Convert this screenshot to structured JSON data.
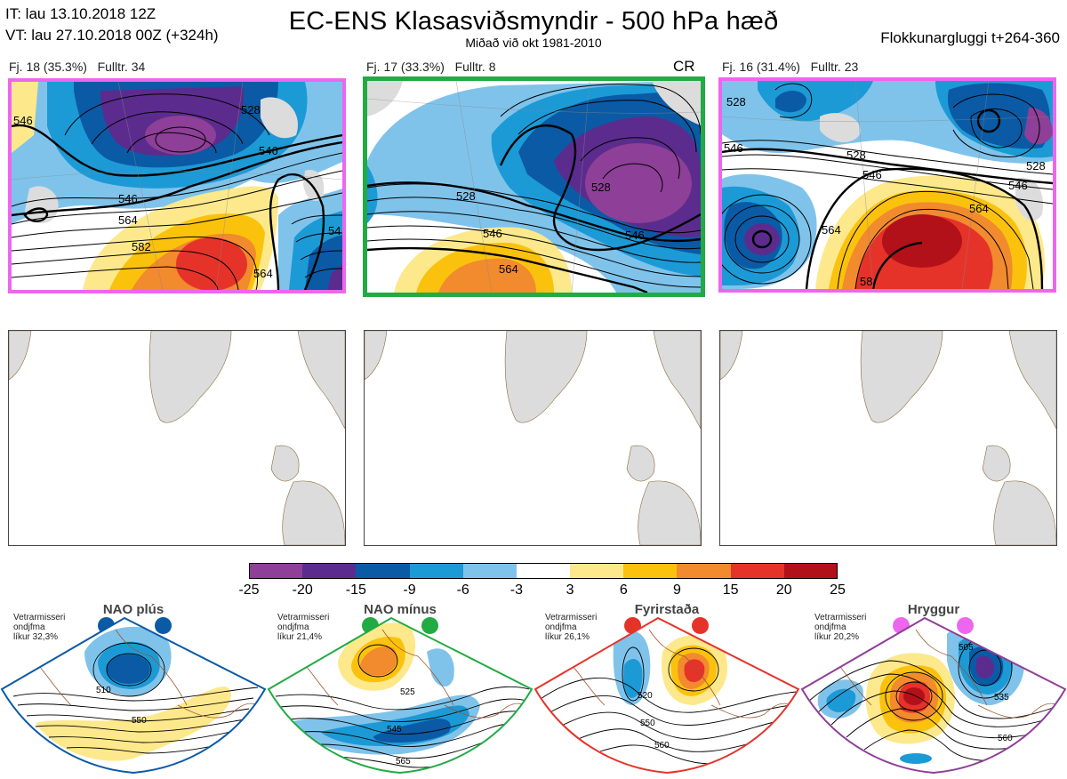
{
  "header": {
    "it_line": "IT: lau 13.10.2018 12Z",
    "vt_line": "VT: lau 27.10.2018 00Z  (+324h)",
    "title": "EC-ENS Klasasviðsmyndir - 500 hPa hæð",
    "subtitle": "Miðað við okt 1981-2010",
    "window": "Flokkunargluggi t+264-360"
  },
  "clusters": [
    {
      "label": "Fj. 18 (35.3%)   Fulltr. 34",
      "border_color": "#ee66ee",
      "badge": "",
      "contour_labels": [
        "546",
        "528",
        "546",
        "546",
        "564",
        "582",
        "564",
        "54"
      ]
    },
    {
      "label": "Fj. 17 (33.3%)   Fulltr. 8",
      "border_color": "#22aa44",
      "badge": "CR",
      "contour_labels": [
        "528",
        "546",
        "564",
        "528",
        "546"
      ]
    },
    {
      "label": "Fj. 16 (31.4%)   Fulltr. 23",
      "border_color": "#ee66ee",
      "badge": "",
      "contour_labels": [
        "528",
        "546",
        "528",
        "546",
        "564",
        "564",
        "546",
        "528",
        "58"
      ]
    }
  ],
  "colorbar": {
    "colors": [
      "#8e3f97",
      "#5b2c8e",
      "#0b5aa5",
      "#1c9ad6",
      "#7fc3eb",
      "#ffffff",
      "#fde98b",
      "#fbc20d",
      "#f28a2e",
      "#e5332a",
      "#b3111a"
    ],
    "ticks": [
      "-25",
      "-20",
      "-15",
      "-9",
      "-6",
      "-3",
      "3",
      "6",
      "9",
      "15",
      "20",
      "25"
    ]
  },
  "regimes": [
    {
      "title": "NAO plús",
      "note": [
        "Vetrarmisseri",
        "ondjfma",
        "líkur 32,3%"
      ],
      "color": "#0b5aa5",
      "contour_labels": [
        "510",
        "550"
      ]
    },
    {
      "title": "NAO mínus",
      "note": [
        "Vetrarmisseri",
        "ondjfma",
        "líkur 21,4%"
      ],
      "color": "#22aa44",
      "contour_labels": [
        "525",
        "545",
        "565"
      ]
    },
    {
      "title": "Fyrirstaða",
      "note": [
        "Vetrarmisseri",
        "ondjfma",
        "líkur 26,1%"
      ],
      "color": "#e5332a",
      "contour_labels": [
        "520",
        "550",
        "560"
      ]
    },
    {
      "title": "Hryggur",
      "note": [
        "Vetrarmisseri",
        "ondjfma",
        "líkur 20,2%"
      ],
      "color": "#ee66ee",
      "contour_labels": [
        "505",
        "535",
        "560"
      ]
    }
  ]
}
